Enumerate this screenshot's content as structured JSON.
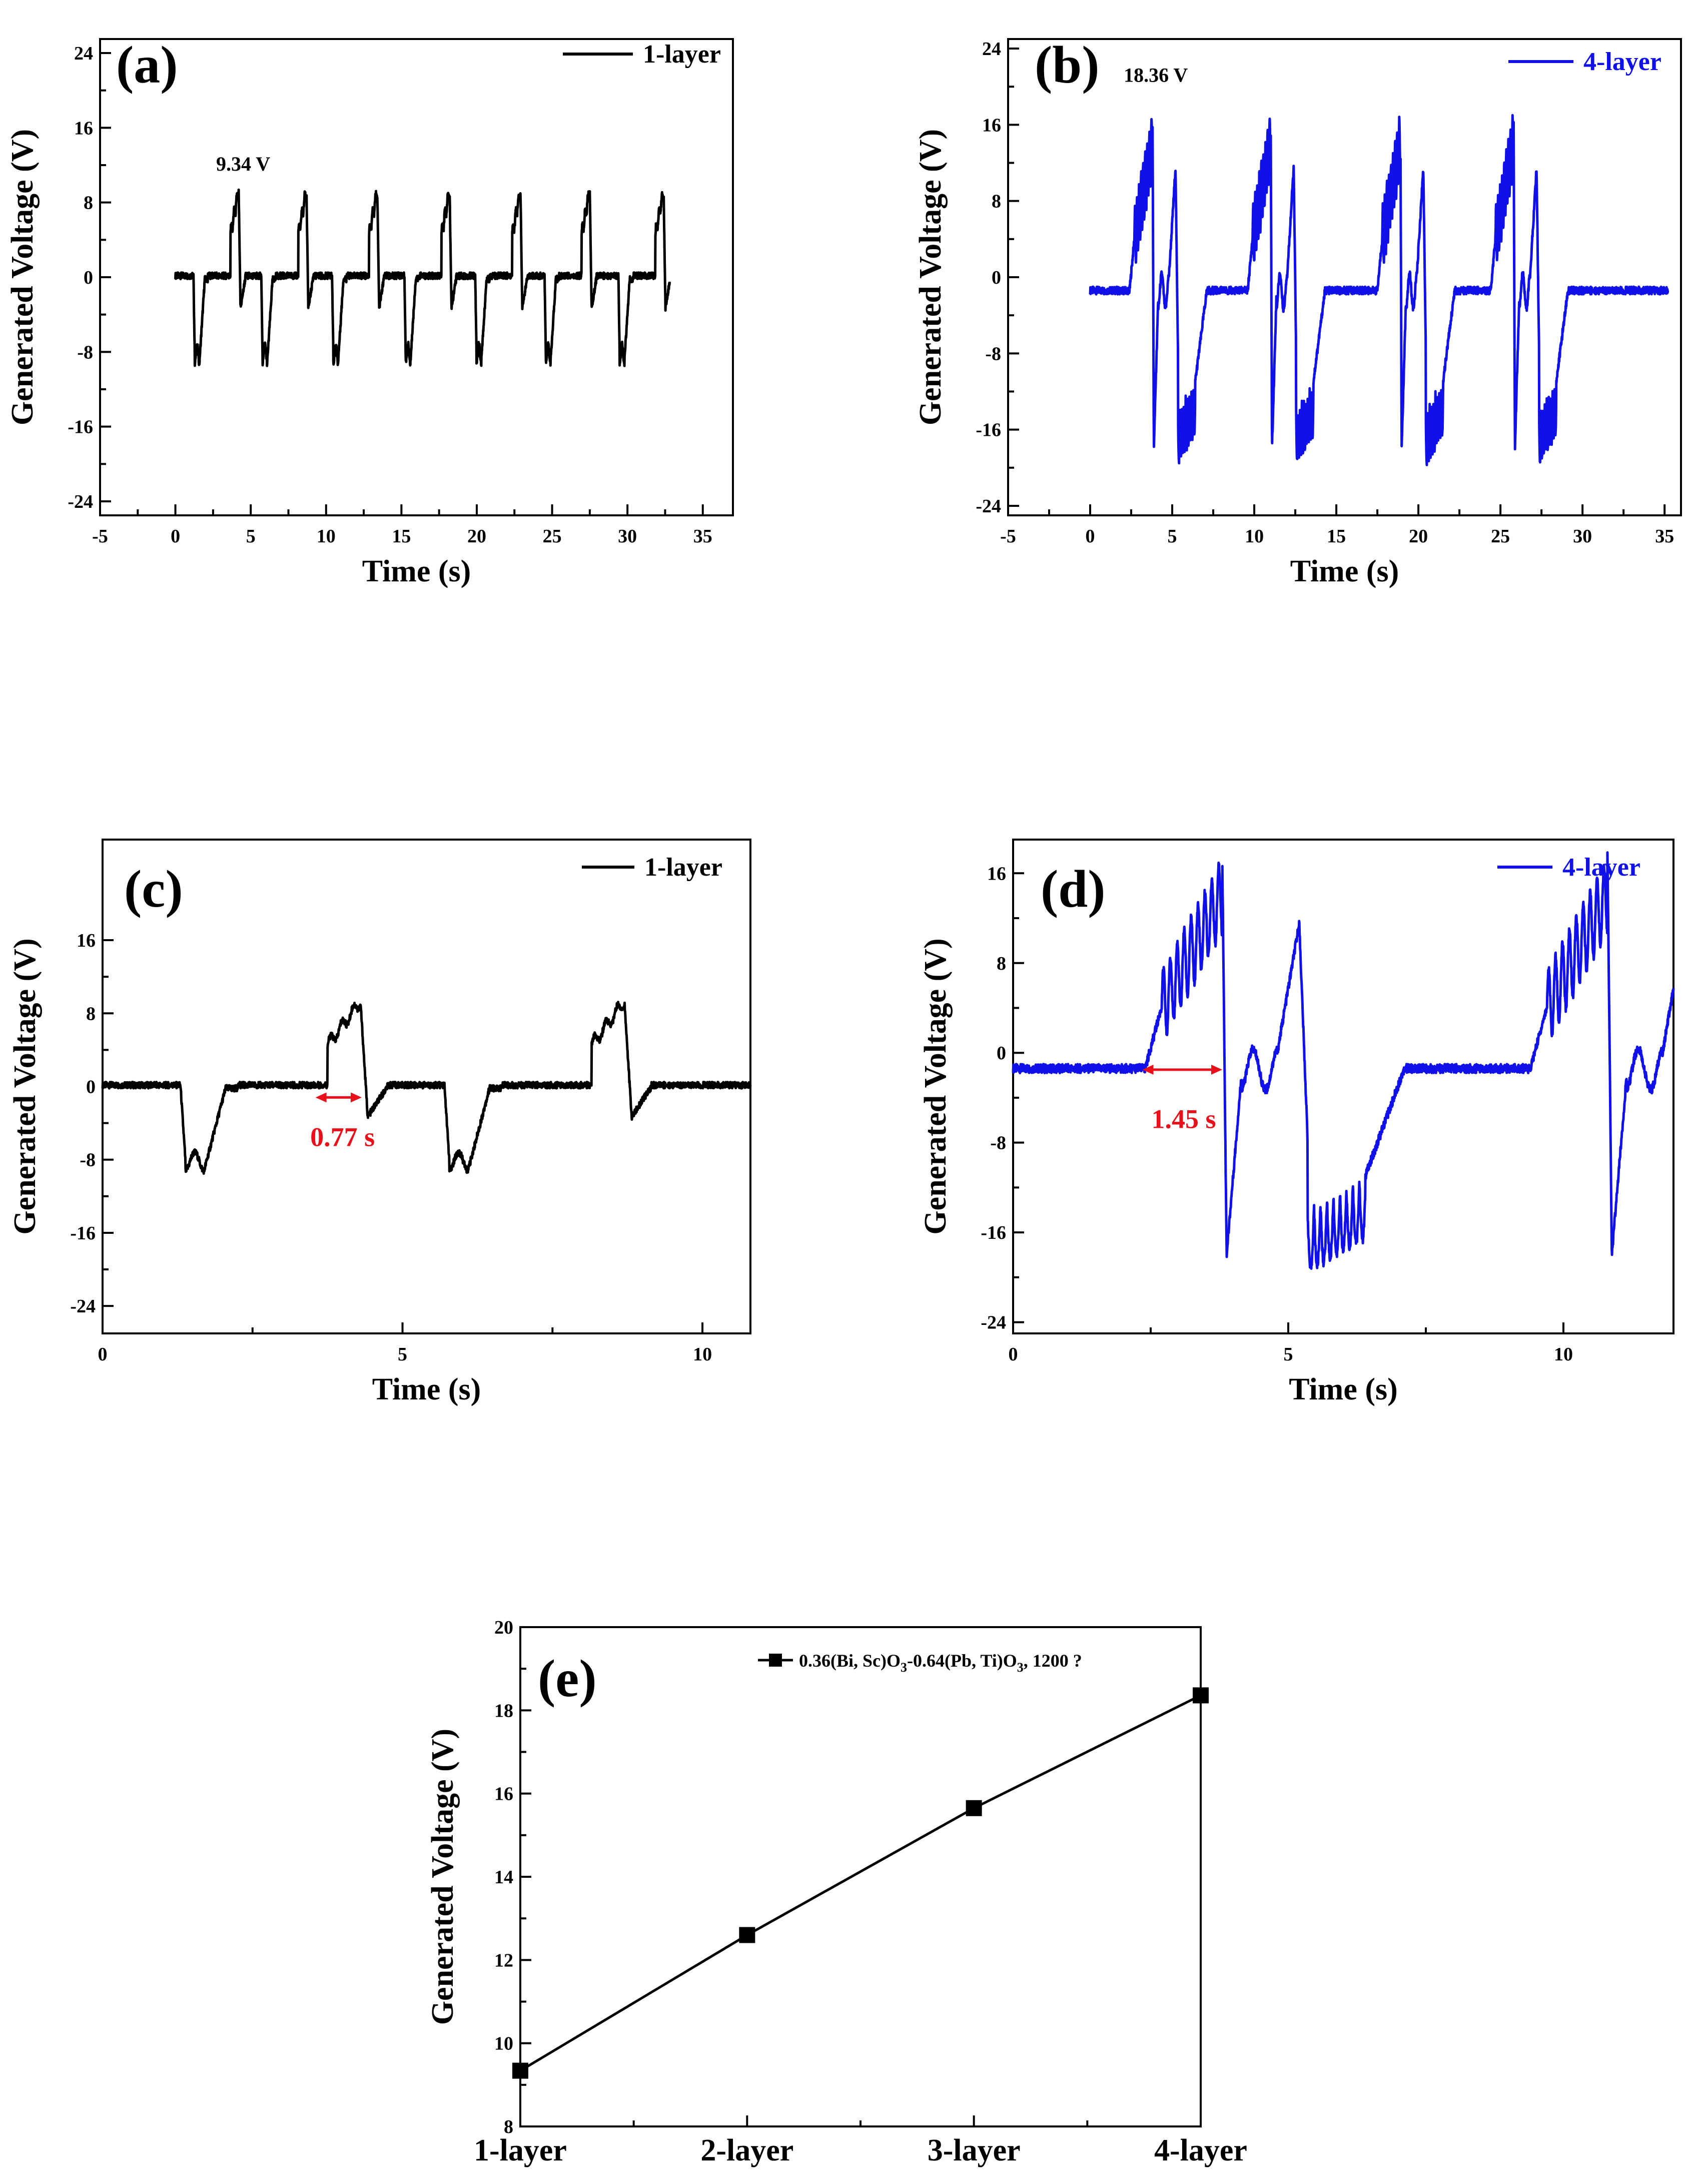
{
  "chart_data": [
    {
      "id": "a",
      "type": "line",
      "panel_label": "(a)",
      "xlabel": "Time (s)",
      "ylabel": "Generated Voltage (V)",
      "xlim": [
        -5,
        37
      ],
      "ylim": [
        -25.5,
        25.5
      ],
      "xticks": [
        -5,
        0,
        5,
        10,
        15,
        20,
        25,
        30,
        35
      ],
      "yticks": [
        -24,
        -16,
        -8,
        0,
        8,
        16,
        24
      ],
      "series": [
        {
          "name": "1-layer",
          "color": "#000000",
          "signal": "one_layer",
          "t_start": 0,
          "t_end": 32.8,
          "pulse_peaks": [
            4.2,
            8.7,
            13.4,
            18.2,
            22.9,
            27.5,
            32.4
          ]
        }
      ],
      "legend": "1-layer",
      "annotations": [
        {
          "text": "9.34 V",
          "x": 4.5,
          "y": 11.4
        }
      ]
    },
    {
      "id": "b",
      "type": "line",
      "panel_label": "(b)",
      "xlabel": "Time (s)",
      "ylabel": "Generated Voltage (V)",
      "xlim": [
        -5,
        36
      ],
      "ylim": [
        -25,
        25
      ],
      "xticks": [
        -5,
        0,
        5,
        10,
        15,
        20,
        25,
        30,
        35
      ],
      "yticks": [
        -24,
        -16,
        -8,
        0,
        8,
        16,
        24
      ],
      "series": [
        {
          "name": "4-layer",
          "color": "#1010e8",
          "signal": "four_layer",
          "t_start": 0,
          "t_end": 35.2,
          "pulse_peaks": [
            3.8,
            11.0,
            18.9,
            25.8
          ]
        }
      ],
      "legend": "4-layer",
      "annotations": [
        {
          "text": "18.36 V",
          "x": 4.0,
          "y": 20.5
        }
      ]
    },
    {
      "id": "c",
      "type": "line",
      "panel_label": "(c)",
      "xlabel": "Time (s)",
      "ylabel": "Generated Voltage (V)",
      "xlim": [
        0,
        10.8
      ],
      "ylim": [
        -27,
        27
      ],
      "xticks": [
        0,
        5,
        10
      ],
      "yticks": [
        -24,
        -16,
        -8,
        0,
        8,
        16
      ],
      "series": [
        {
          "name": "1-layer",
          "color": "#000000",
          "signal": "one_layer",
          "t_start": 0,
          "t_end": 10.8,
          "pulse_peaks": [
            4.3,
            8.7
          ]
        }
      ],
      "legend": "1-layer",
      "annotations": [
        {
          "text": "0.77 s",
          "x": 4.0,
          "y": -6.5,
          "color": "#e8111b",
          "arrow_from": 3.55,
          "arrow_to": 4.32,
          "arrow_y": -1.2
        }
      ]
    },
    {
      "id": "d",
      "type": "line",
      "panel_label": "(d)",
      "xlabel": "Time (s)",
      "ylabel": "Generated Voltage (V)",
      "xlim": [
        0,
        12
      ],
      "ylim": [
        -25,
        19
      ],
      "xticks": [
        0,
        5,
        10
      ],
      "yticks": [
        -24,
        -16,
        -8,
        0,
        8,
        16
      ],
      "series": [
        {
          "name": "4-layer",
          "color": "#1010e8",
          "signal": "four_layer",
          "t_start": 0,
          "t_end": 12,
          "pulse_peaks": [
            3.8,
            10.8
          ]
        }
      ],
      "legend": "4-layer",
      "annotations": [
        {
          "text": "1.45 s",
          "x": 3.1,
          "y": -6.7,
          "color": "#e8111b",
          "arrow_from": 2.35,
          "arrow_to": 3.8,
          "arrow_y": -1.5
        }
      ]
    },
    {
      "id": "e",
      "type": "line",
      "panel_label": "(e)",
      "xlabel": "",
      "ylabel": "Generated Voltage (V)",
      "categories": [
        "1-layer",
        "2-layer",
        "3-layer",
        "4-layer"
      ],
      "values": [
        9.34,
        12.6,
        15.65,
        18.36
      ],
      "ylim": [
        8,
        20
      ],
      "yticks": [
        8,
        10,
        12,
        14,
        16,
        18,
        20
      ],
      "series": [
        {
          "name": "0.36(Bi, Sc)O3-0.64(Pb, Ti)O3, 1200 ?",
          "color": "#000000",
          "values": [
            9.34,
            12.6,
            15.65,
            18.36
          ]
        }
      ],
      "legend": "0.36(Bi, Sc)O3-0.64(Pb, Ti)O3, 1200 ?"
    }
  ],
  "legend_e": {
    "part1": "0.36(Bi, Sc)O",
    "sub1": "3",
    "part2": "-0.64(Pb, Ti)O",
    "sub2": "3",
    "part3": ", 1200 ?"
  }
}
